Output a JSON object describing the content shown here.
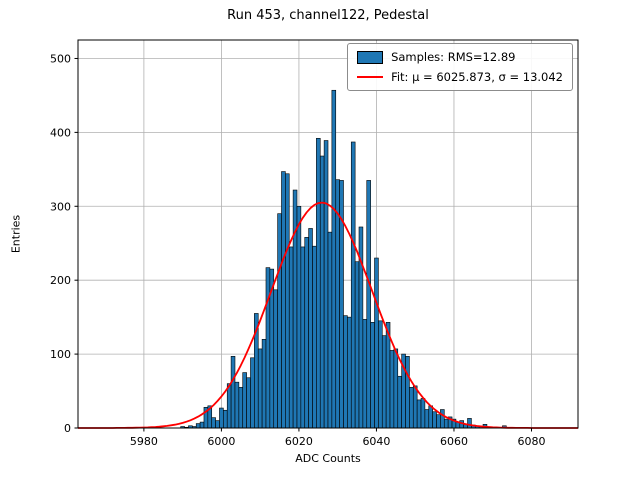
{
  "chart_data": {
    "type": "bar",
    "title": "Run 453, channel122, Pedestal",
    "xlabel": "ADC Counts",
    "ylabel": "Entries",
    "xlim": [
      5963,
      6092
    ],
    "ylim": [
      0,
      525
    ],
    "xticks": [
      5980,
      6000,
      6020,
      6040,
      6060,
      6080
    ],
    "yticks": [
      0,
      100,
      200,
      300,
      400,
      500
    ],
    "grid": true,
    "bar_color": "#1f77b4",
    "bar_edge_color": "#000000",
    "fit_color": "#ff0000",
    "grid_color": "#b0b0b0",
    "bin_start": 5990,
    "bin_width": 1,
    "counts": [
      2,
      1,
      3,
      2,
      6,
      8,
      28,
      30,
      14,
      10,
      27,
      24,
      60,
      97,
      62,
      55,
      75,
      68,
      95,
      155,
      107,
      120,
      217,
      215,
      187,
      290,
      347,
      344,
      245,
      322,
      300,
      245,
      258,
      270,
      246,
      392,
      368,
      389,
      265,
      457,
      336,
      335,
      152,
      150,
      387,
      225,
      272,
      147,
      335,
      143,
      230,
      145,
      125,
      143,
      105,
      107,
      70,
      100,
      97,
      55,
      57,
      38,
      40,
      25,
      30,
      22,
      18,
      25,
      12,
      15,
      12,
      8,
      10,
      5,
      13,
      4,
      3,
      2,
      5,
      1,
      0,
      0,
      0,
      3
    ],
    "stats": {
      "rms": 12.89
    },
    "fit": {
      "mu": 6025.873,
      "sigma": 13.042,
      "amplitude": 305
    },
    "legend": {
      "position": "upper right",
      "samples_label": "Samples: RMS=12.89",
      "fit_label": "Fit: μ = 6025.873, σ = 13.042"
    }
  }
}
